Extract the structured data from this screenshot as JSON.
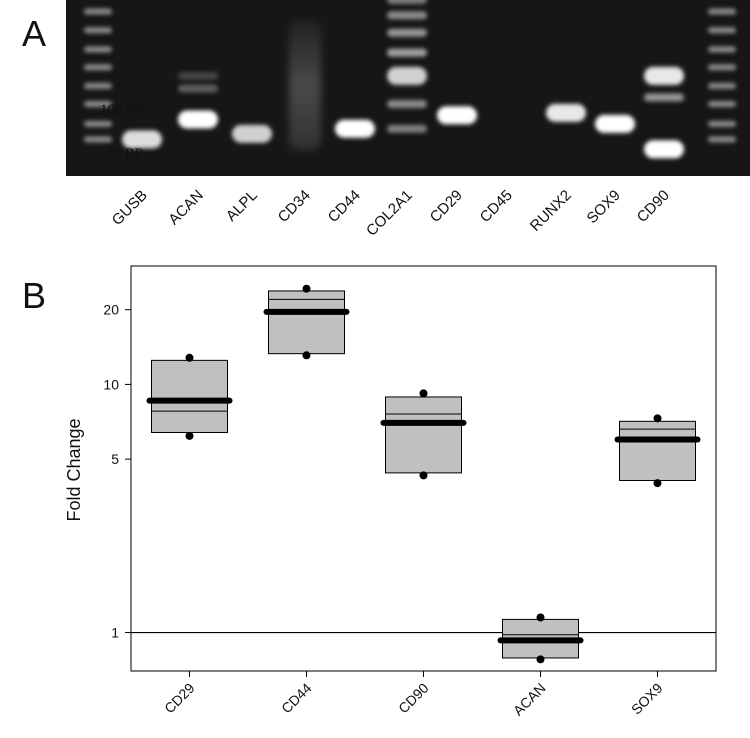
{
  "panel_a": {
    "letter": "A",
    "bp_markers": [
      {
        "label": "100 BP",
        "bp": 100
      },
      {
        "label": "50 BP",
        "bp": 50
      }
    ],
    "lanes": [
      {
        "label": "GUSB",
        "bands": [
          {
            "bp": 60,
            "intensity": 0.85
          }
        ]
      },
      {
        "label": "ACAN",
        "bands": [
          {
            "bp": 80,
            "intensity": 1.0
          },
          {
            "bp": 125,
            "intensity": 0.3
          },
          {
            "bp": 150,
            "intensity": 0.2
          }
        ]
      },
      {
        "label": "ALPL",
        "bands": [
          {
            "bp": 65,
            "intensity": 0.8
          }
        ]
      },
      {
        "label": "CD34",
        "smear": true,
        "bands": []
      },
      {
        "label": "CD44",
        "bands": [
          {
            "bp": 70,
            "intensity": 1.0
          }
        ]
      },
      {
        "label": "COL2A1",
        "ladder_like": true,
        "bands": [
          {
            "bp": 70,
            "intensity": 0.45
          },
          {
            "bp": 100,
            "intensity": 0.5
          },
          {
            "bp": 150,
            "intensity": 0.8
          },
          {
            "bp": 210,
            "intensity": 0.6
          },
          {
            "bp": 280,
            "intensity": 0.55
          },
          {
            "bp": 360,
            "intensity": 0.5
          },
          {
            "bp": 450,
            "intensity": 0.45
          }
        ]
      },
      {
        "label": "CD29",
        "bands": [
          {
            "bp": 85,
            "intensity": 1.0
          }
        ]
      },
      {
        "label": "CD45",
        "bands": []
      },
      {
        "label": "RUNX2",
        "bands": [
          {
            "bp": 88,
            "intensity": 0.9
          }
        ]
      },
      {
        "label": "SOX9",
        "bands": [
          {
            "bp": 75,
            "intensity": 1.0
          }
        ]
      },
      {
        "label": "CD90",
        "bands": [
          {
            "bp": 52,
            "intensity": 1.0
          },
          {
            "bp": 110,
            "intensity": 0.55
          },
          {
            "bp": 150,
            "intensity": 0.9
          }
        ]
      }
    ]
  },
  "panel_b": {
    "letter": "B"
  },
  "chart_data": {
    "type": "box",
    "ylabel": "Fold Change",
    "yscale": "log",
    "ylim": [
      0.7,
      30
    ],
    "yticks": [
      1,
      5,
      10,
      20
    ],
    "reference_line": 1,
    "categories": [
      "CD29",
      "CD44",
      "CD90",
      "ACAN",
      "SOX9"
    ],
    "boxes": [
      {
        "category": "CD29",
        "q1": 6.4,
        "median": 7.8,
        "q3": 12.5,
        "mean": 8.6,
        "min": 6.2,
        "max": 12.8
      },
      {
        "category": "CD44",
        "q1": 13.3,
        "median": 22.0,
        "q3": 23.8,
        "mean": 19.6,
        "min": 13.1,
        "max": 24.3
      },
      {
        "category": "CD90",
        "q1": 4.4,
        "median": 7.6,
        "q3": 8.9,
        "mean": 7.0,
        "min": 4.3,
        "max": 9.2
      },
      {
        "category": "ACAN",
        "q1": 0.79,
        "median": 0.98,
        "q3": 1.13,
        "mean": 0.93,
        "min": 0.78,
        "max": 1.15
      },
      {
        "category": "SOX9",
        "q1": 4.1,
        "median": 6.6,
        "q3": 7.1,
        "mean": 6.0,
        "min": 4.0,
        "max": 7.3
      }
    ],
    "colors": {
      "box_fill": "#c0c0c0",
      "box_stroke": "#000000",
      "mean_line": "#000000"
    },
    "grid": false
  }
}
